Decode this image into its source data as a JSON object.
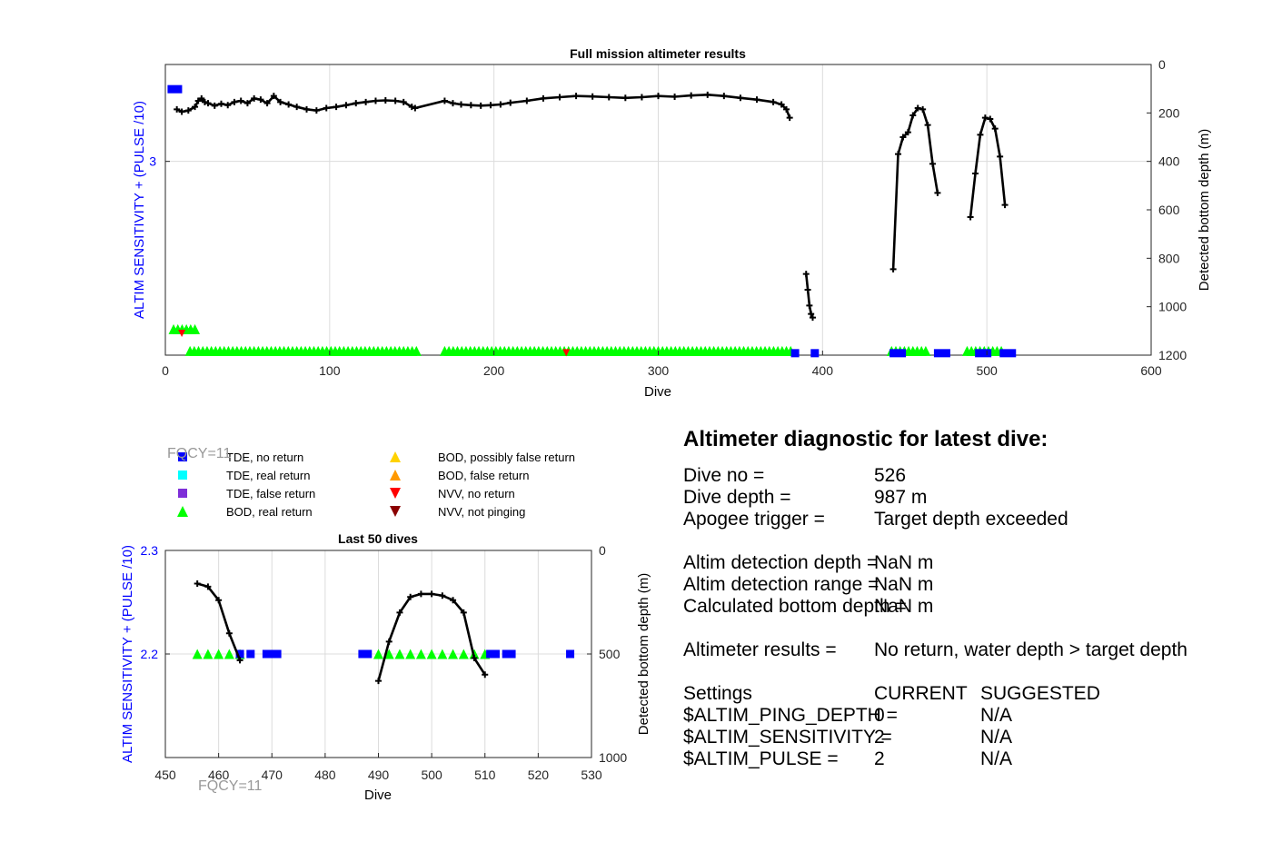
{
  "colors": {
    "left_axis": "#0000ff",
    "track": "#000000",
    "tde_no_return": "#0000ff",
    "tde_real_return": "#00ffff",
    "tde_false_return": "#7e2fd8",
    "bod_real_return": "#00ff00",
    "bod_possibly_false": "#ffd200",
    "bod_false": "#ff9900",
    "nvv_no_return": "#ff0000",
    "nvv_not_pinging": "#8b0000",
    "fqcy_label": "#999999"
  },
  "chart_data": [
    {
      "id": "full",
      "type": "scatter",
      "title": "Full mission altimeter results",
      "xlabel": "Dive",
      "ylabel_left": "ALTIM SENSITIVITY + (PULSE /10)",
      "ylabel_right": "Detected bottom depth (m)",
      "xlim": [
        0,
        600
      ],
      "ylim_right": [
        1200,
        0
      ],
      "xticks": [
        "0",
        "100",
        "200",
        "300",
        "400",
        "500",
        "600"
      ],
      "yticks_left": [
        "3"
      ],
      "yticks_right": [
        "0",
        "200",
        "400",
        "600",
        "800",
        "1000",
        "1200"
      ],
      "grid": true,
      "series": [
        {
          "name": "depth",
          "x": [
            7,
            10,
            14,
            18,
            20,
            22,
            24,
            26,
            30,
            34,
            38,
            42,
            46,
            50,
            54,
            58,
            62,
            66,
            70,
            75,
            80,
            86,
            92,
            98,
            104,
            110,
            116,
            122,
            128,
            134,
            140,
            145,
            150,
            152,
            170,
            175,
            180,
            186,
            192,
            198,
            204,
            210,
            220,
            230,
            240,
            250,
            260,
            270,
            280,
            290,
            300,
            310,
            320,
            330,
            340,
            350,
            360,
            370,
            375,
            378,
            380
          ],
          "y": [
            185,
            195,
            190,
            175,
            150,
            140,
            155,
            160,
            170,
            162,
            168,
            155,
            150,
            160,
            140,
            145,
            160,
            130,
            155,
            165,
            175,
            185,
            190,
            180,
            175,
            168,
            160,
            155,
            150,
            148,
            150,
            155,
            175,
            180,
            150,
            160,
            165,
            168,
            170,
            168,
            165,
            158,
            150,
            140,
            135,
            130,
            132,
            135,
            138,
            135,
            130,
            133,
            128,
            125,
            130,
            138,
            145,
            155,
            165,
            185,
            220
          ]
        },
        {
          "name": "depth-b",
          "x": [
            390,
            391,
            392,
            393,
            394
          ],
          "y": [
            865,
            930,
            995,
            1030,
            1045
          ]
        },
        {
          "name": "depth-c",
          "x": [
            443,
            446,
            449,
            452,
            455,
            458,
            461,
            464,
            467,
            470
          ],
          "y": [
            845,
            370,
            300,
            280,
            210,
            180,
            185,
            250,
            410,
            530
          ]
        },
        {
          "name": "depth-d",
          "x": [
            490,
            493,
            496,
            499,
            502,
            505,
            508,
            511
          ],
          "y": [
            630,
            450,
            290,
            220,
            225,
            265,
            380,
            580
          ]
        },
        {
          "name": "tde-no-return",
          "x": [
            3,
            383,
            395,
            443,
            470,
            495,
            510
          ],
          "y": [
            100,
            1190,
            1190,
            1190,
            1190,
            1190,
            1190
          ]
        },
        {
          "name": "bod-real-return",
          "x": [
            5,
            15,
            170,
            442,
            488
          ],
          "x_end": [
            18,
            153,
            382,
            465,
            510
          ],
          "y": [
            1100,
            1190,
            1190,
            1190,
            1190
          ]
        },
        {
          "name": "nvv-no-return",
          "x": [
            10,
            244
          ],
          "y": [
            1110,
            1190
          ]
        }
      ]
    },
    {
      "id": "last50",
      "type": "scatter",
      "title": "Last 50 dives",
      "xlabel": "Dive",
      "ylabel_left": "ALTIM SENSITIVITY + (PULSE /10)",
      "ylabel_right": "Detected bottom depth (m)",
      "xlim": [
        450,
        530
      ],
      "ylim_left": [
        2.1,
        2.3
      ],
      "ylim_right": [
        1000,
        0
      ],
      "xticks": [
        "450",
        "460",
        "470",
        "480",
        "490",
        "500",
        "510",
        "520",
        "530"
      ],
      "yticks_left": [
        "2.3",
        "2.2"
      ],
      "yticks_right": [
        "0",
        "500",
        "1000"
      ],
      "grid": true,
      "series": [
        {
          "name": "depth-a",
          "x": [
            456,
            458,
            460,
            462,
            464
          ],
          "y": [
            160,
            175,
            240,
            400,
            530
          ]
        },
        {
          "name": "depth-b",
          "x": [
            490,
            492,
            494,
            496,
            498,
            500,
            502,
            504,
            506,
            508,
            510
          ],
          "y": [
            630,
            440,
            300,
            225,
            210,
            210,
            218,
            240,
            300,
            520,
            600
          ]
        },
        {
          "name": "tde-no-return",
          "x": [
            464,
            466,
            469,
            470,
            471,
            487,
            488,
            511,
            512,
            514,
            515,
            526
          ],
          "y": [
            2.2,
            2.2,
            2.2,
            2.2,
            2.2,
            2.2,
            2.2,
            2.2,
            2.2,
            2.2,
            2.2,
            2.2
          ]
        },
        {
          "name": "bod-real-return",
          "x": [
            456,
            458,
            460,
            462,
            464,
            490,
            492,
            494,
            496,
            498,
            500,
            502,
            504,
            506,
            508,
            510
          ],
          "y": [
            2.2,
            2.2,
            2.2,
            2.2,
            2.2,
            2.2,
            2.2,
            2.2,
            2.2,
            2.2,
            2.2,
            2.2,
            2.2,
            2.2,
            2.2,
            2.2
          ]
        }
      ]
    }
  ],
  "legend": {
    "items": [
      {
        "label": "TDE, no return",
        "marker": "square",
        "color": "#0000ff"
      },
      {
        "label": "TDE, real return",
        "marker": "square",
        "color": "#00ffff"
      },
      {
        "label": "TDE, false return",
        "marker": "square",
        "color": "#7e2fd8"
      },
      {
        "label": "BOD, real return",
        "marker": "triangle-up",
        "color": "#00ff00"
      },
      {
        "label": "BOD, possibly false return",
        "marker": "triangle-up",
        "color": "#ffd200"
      },
      {
        "label": "BOD, false return",
        "marker": "triangle-up",
        "color": "#ff9900"
      },
      {
        "label": "NVV, no return",
        "marker": "triangle-down",
        "color": "#ff0000"
      },
      {
        "label": "NVV, not pinging",
        "marker": "triangle-down",
        "color": "#8b0000"
      }
    ]
  },
  "fqcy_labels": [
    "FQCY=11",
    "FQCY=11"
  ],
  "diagnostic": {
    "title": "Altimeter diagnostic for latest dive:",
    "dive_no_label": "Dive no =",
    "dive_no": "526",
    "dive_depth_label": "Dive depth =",
    "dive_depth": "987 m",
    "apogee_label": "Apogee trigger =",
    "apogee": "Target depth exceeded",
    "detection_depth_label": "Altim detection depth =",
    "detection_depth": "NaN m",
    "detection_range_label": "Altim detection range =",
    "detection_range": "NaN m",
    "bottom_depth_label": "Calculated bottom depth =",
    "bottom_depth": "NaN m",
    "results_label": "Altimeter results =",
    "results": "No return, water depth > target depth",
    "settings_label": "Settings",
    "current_header": "CURRENT",
    "suggested_header": "SUGGESTED",
    "ping_depth_label": "$ALTIM_PING_DEPTH =",
    "ping_depth_current": "0",
    "ping_depth_suggested": "N/A",
    "sensitivity_label": "$ALTIM_SENSITIVITY =",
    "sensitivity_current": "2",
    "sensitivity_suggested": "N/A",
    "pulse_label": "$ALTIM_PULSE =",
    "pulse_current": "2",
    "pulse_suggested": "N/A"
  }
}
